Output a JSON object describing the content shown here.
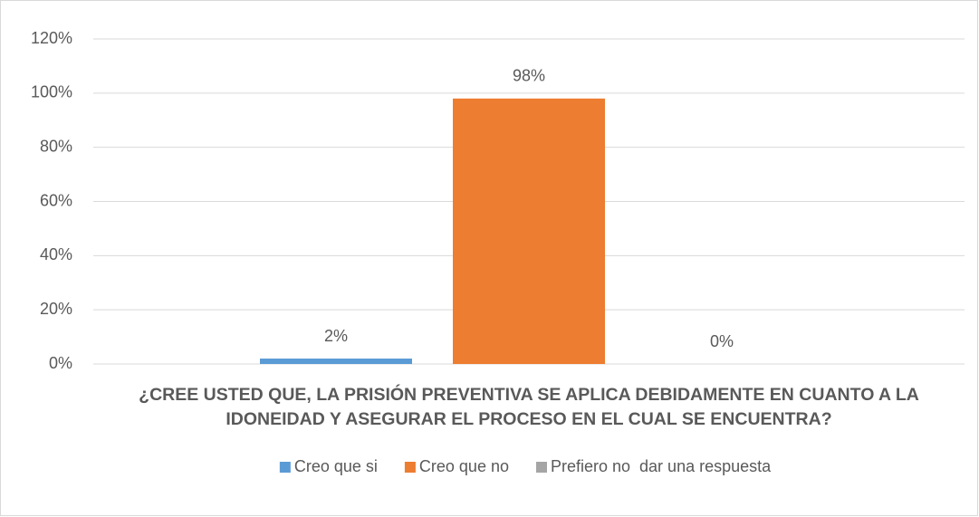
{
  "chart_data": {
    "type": "bar",
    "categories": [
      "¿CREE USTED QUE, LA PRISIÓN PREVENTIVA SE APLICA DEBIDAMENTE EN CUANTO A LA IDONEIDAD Y ASEGURAR EL PROCESO EN EL CUAL SE ENCUENTRA?"
    ],
    "series": [
      {
        "name": "Creo que si",
        "color": "#5b9bd5",
        "values": [
          2
        ],
        "value_labels": [
          "2%"
        ]
      },
      {
        "name": "Creo que no",
        "color": "#ed7d31",
        "values": [
          98
        ],
        "value_labels": [
          "98%"
        ]
      },
      {
        "name": "Prefiero no  dar una respuesta",
        "color": "#a5a5a5",
        "values": [
          0
        ],
        "value_labels": [
          "0%"
        ]
      }
    ],
    "ylim": [
      0,
      120
    ],
    "yticks": [
      {
        "value": 0,
        "label": "0%"
      },
      {
        "value": 20,
        "label": "20%"
      },
      {
        "value": 40,
        "label": "40%"
      },
      {
        "value": 60,
        "label": "60%"
      },
      {
        "value": 80,
        "label": "80%"
      },
      {
        "value": 100,
        "label": "100%"
      },
      {
        "value": 120,
        "label": "120%"
      }
    ],
    "grid": true,
    "legend": "bottom"
  }
}
